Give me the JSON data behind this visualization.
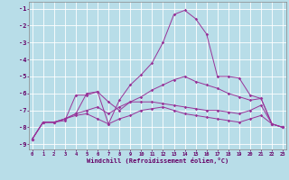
{
  "background_color": "#b8dde8",
  "grid_color": "#ffffff",
  "line_color": "#993399",
  "xlabel": "Windchill (Refroidissement éolien,°C)",
  "xlim": [
    -0.3,
    23.3
  ],
  "ylim": [
    -9.3,
    -0.6
  ],
  "ytick_vals": [
    -9,
    -8,
    -7,
    -6,
    -5,
    -4,
    -3,
    -2,
    -1
  ],
  "xtick_labels": [
    "0",
    "1",
    "2",
    "3",
    "4",
    "5",
    "6",
    "7",
    "8",
    "9",
    "10",
    "11",
    "12",
    "13",
    "14",
    "15",
    "16",
    "17",
    "18",
    "19",
    "20",
    "21",
    "22",
    "23"
  ],
  "series": [
    {
      "x": [
        0,
        1,
        2,
        3,
        4,
        5,
        6,
        7,
        8,
        9,
        10,
        11,
        12,
        13,
        14,
        15,
        16,
        17,
        18,
        19,
        20,
        21,
        22,
        23
      ],
      "y": [
        -8.7,
        -7.7,
        -7.7,
        -7.6,
        -6.1,
        -6.1,
        -5.9,
        -7.8,
        -6.4,
        -5.5,
        -4.9,
        -4.2,
        -3.0,
        -1.35,
        -1.1,
        -1.6,
        -2.5,
        -5.0,
        -5.0,
        -5.1,
        -6.1,
        -6.3,
        -7.8,
        -8.0
      ]
    },
    {
      "x": [
        0,
        1,
        2,
        3,
        4,
        5,
        6,
        7,
        8,
        9,
        10,
        11,
        12,
        13,
        14,
        15,
        16,
        17,
        18,
        19,
        20,
        21,
        22,
        23
      ],
      "y": [
        -8.7,
        -7.7,
        -7.7,
        -7.5,
        -7.2,
        -6.0,
        -5.9,
        -6.5,
        -7.0,
        -6.5,
        -6.2,
        -5.8,
        -5.5,
        -5.2,
        -5.0,
        -5.3,
        -5.5,
        -5.7,
        -6.0,
        -6.2,
        -6.4,
        -6.3,
        -7.8,
        -8.0
      ]
    },
    {
      "x": [
        0,
        1,
        2,
        3,
        4,
        5,
        6,
        7,
        8,
        9,
        10,
        11,
        12,
        13,
        14,
        15,
        16,
        17,
        18,
        19,
        20,
        21,
        22,
        23
      ],
      "y": [
        -8.7,
        -7.7,
        -7.7,
        -7.5,
        -7.2,
        -7.0,
        -6.8,
        -7.2,
        -6.8,
        -6.5,
        -6.5,
        -6.5,
        -6.6,
        -6.7,
        -6.8,
        -6.9,
        -7.0,
        -7.0,
        -7.1,
        -7.2,
        -7.0,
        -6.7,
        -7.8,
        -8.0
      ]
    },
    {
      "x": [
        0,
        1,
        2,
        3,
        4,
        5,
        6,
        7,
        8,
        9,
        10,
        11,
        12,
        13,
        14,
        15,
        16,
        17,
        18,
        19,
        20,
        21,
        22,
        23
      ],
      "y": [
        -8.7,
        -7.7,
        -7.7,
        -7.5,
        -7.3,
        -7.2,
        -7.5,
        -7.8,
        -7.5,
        -7.3,
        -7.0,
        -6.9,
        -6.8,
        -7.0,
        -7.2,
        -7.3,
        -7.4,
        -7.5,
        -7.6,
        -7.7,
        -7.5,
        -7.3,
        -7.8,
        -8.0
      ]
    }
  ]
}
